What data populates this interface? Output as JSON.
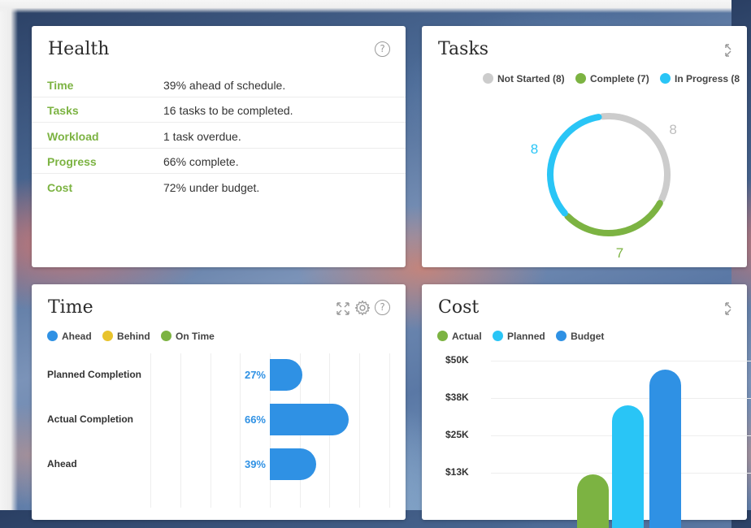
{
  "health": {
    "title": "Health",
    "help_glyph": "?",
    "rows": [
      {
        "label": "Time",
        "value": "39% ahead of schedule."
      },
      {
        "label": "Tasks",
        "value": "16 tasks to be completed."
      },
      {
        "label": "Workload",
        "value": "1 task overdue."
      },
      {
        "label": "Progress",
        "value": "66% complete."
      },
      {
        "label": "Cost",
        "value": "72% under budget."
      }
    ]
  },
  "tasks": {
    "title": "Tasks",
    "legend": [
      {
        "label": "Not Started (8)",
        "color": "#cccccc"
      },
      {
        "label": "Complete (7)",
        "color": "#7cb342"
      },
      {
        "label": "In Progress (8",
        "color": "#29c5f6"
      }
    ],
    "chart_data": {
      "type": "pie",
      "style": "donut",
      "slices": [
        {
          "name": "Not Started",
          "value": 8,
          "color": "#cccccc",
          "label": "8"
        },
        {
          "name": "Complete",
          "value": 7,
          "color": "#7cb342",
          "label": "7"
        },
        {
          "name": "In Progress",
          "value": 8,
          "color": "#29c5f6",
          "label": "8"
        }
      ]
    }
  },
  "time": {
    "title": "Time",
    "help_glyph": "?",
    "legend": [
      {
        "label": "Ahead",
        "color": "#2f91e4"
      },
      {
        "label": "Behind",
        "color": "#e8c32c"
      },
      {
        "label": "On Time",
        "color": "#7cb342"
      }
    ],
    "chart_data": {
      "type": "bar",
      "orientation": "horizontal",
      "categories": [
        "Planned Completion",
        "Actual Completion",
        "Ahead"
      ],
      "values": [
        27,
        66,
        39
      ],
      "labels": [
        "27%",
        "66%",
        "39%"
      ],
      "color": "#2f91e4",
      "xlim": [
        -100,
        100
      ]
    }
  },
  "cost": {
    "title": "Cost",
    "legend": [
      {
        "label": "Actual",
        "color": "#7cb342"
      },
      {
        "label": "Planned",
        "color": "#29c5f6"
      },
      {
        "label": "Budget",
        "color": "#2f91e4"
      }
    ],
    "chart_data": {
      "type": "bar",
      "y_ticks": [
        "$50K",
        "$38K",
        "$25K",
        "$13K"
      ],
      "y_tick_values": [
        50000,
        37500,
        25000,
        12500
      ],
      "series": [
        {
          "name": "Actual",
          "value": 12000,
          "color": "#7cb342"
        },
        {
          "name": "Planned",
          "value": 35000,
          "color": "#29c5f6"
        },
        {
          "name": "Budget",
          "value": 47000,
          "color": "#2f91e4"
        }
      ],
      "ylim": [
        0,
        50000
      ]
    }
  }
}
